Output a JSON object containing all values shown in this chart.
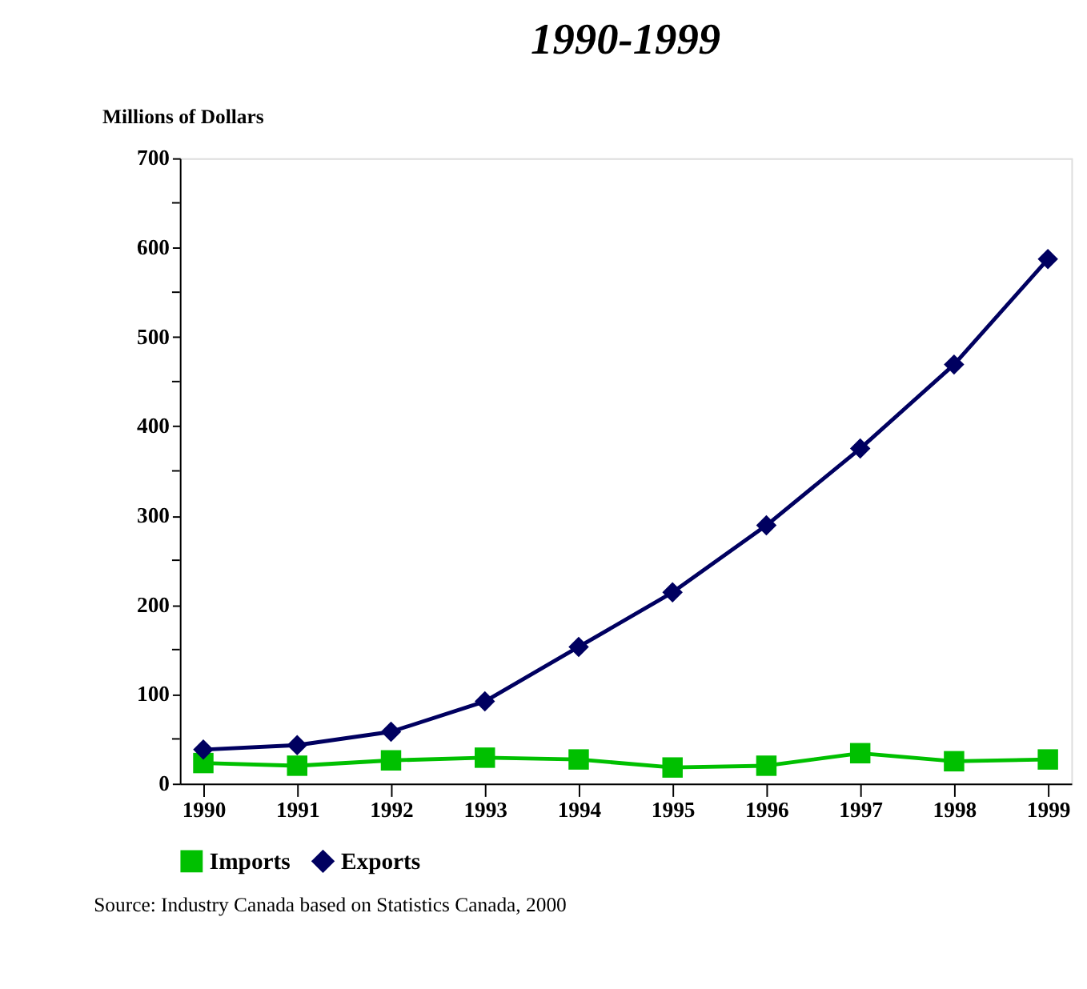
{
  "chart_data": {
    "type": "line",
    "title": "1990-1999",
    "ylabel": "Millions of Dollars",
    "categories": [
      "1990",
      "1991",
      "1992",
      "1993",
      "1994",
      "1995",
      "1996",
      "1997",
      "1998",
      "1999"
    ],
    "series": [
      {
        "name": "Imports",
        "color": "#00c000",
        "marker": "square",
        "values": [
          23,
          20,
          26,
          29,
          27,
          18,
          20,
          34,
          25,
          27
        ]
      },
      {
        "name": "Exports",
        "color": "#000060",
        "marker": "diamond",
        "values": [
          38,
          43,
          58,
          92,
          153,
          214,
          289,
          375,
          469,
          587
        ]
      }
    ],
    "ylim": [
      0,
      700
    ],
    "yticks": [
      0,
      {
        "value": 50,
        "label": null
      },
      100,
      {
        "value": 150,
        "label": null
      },
      200,
      {
        "value": 250,
        "label": null
      },
      300,
      {
        "value": 350,
        "label": null
      },
      400,
      {
        "value": 450,
        "label": null
      },
      500,
      {
        "value": 550,
        "label": null
      },
      600,
      {
        "value": 650,
        "label": null
      },
      700
    ],
    "grid": false,
    "legend": "bottom",
    "line_style": "solid",
    "annotations": [
      "Source: Industry Canada based on Statistics Canada, 2000"
    ]
  }
}
